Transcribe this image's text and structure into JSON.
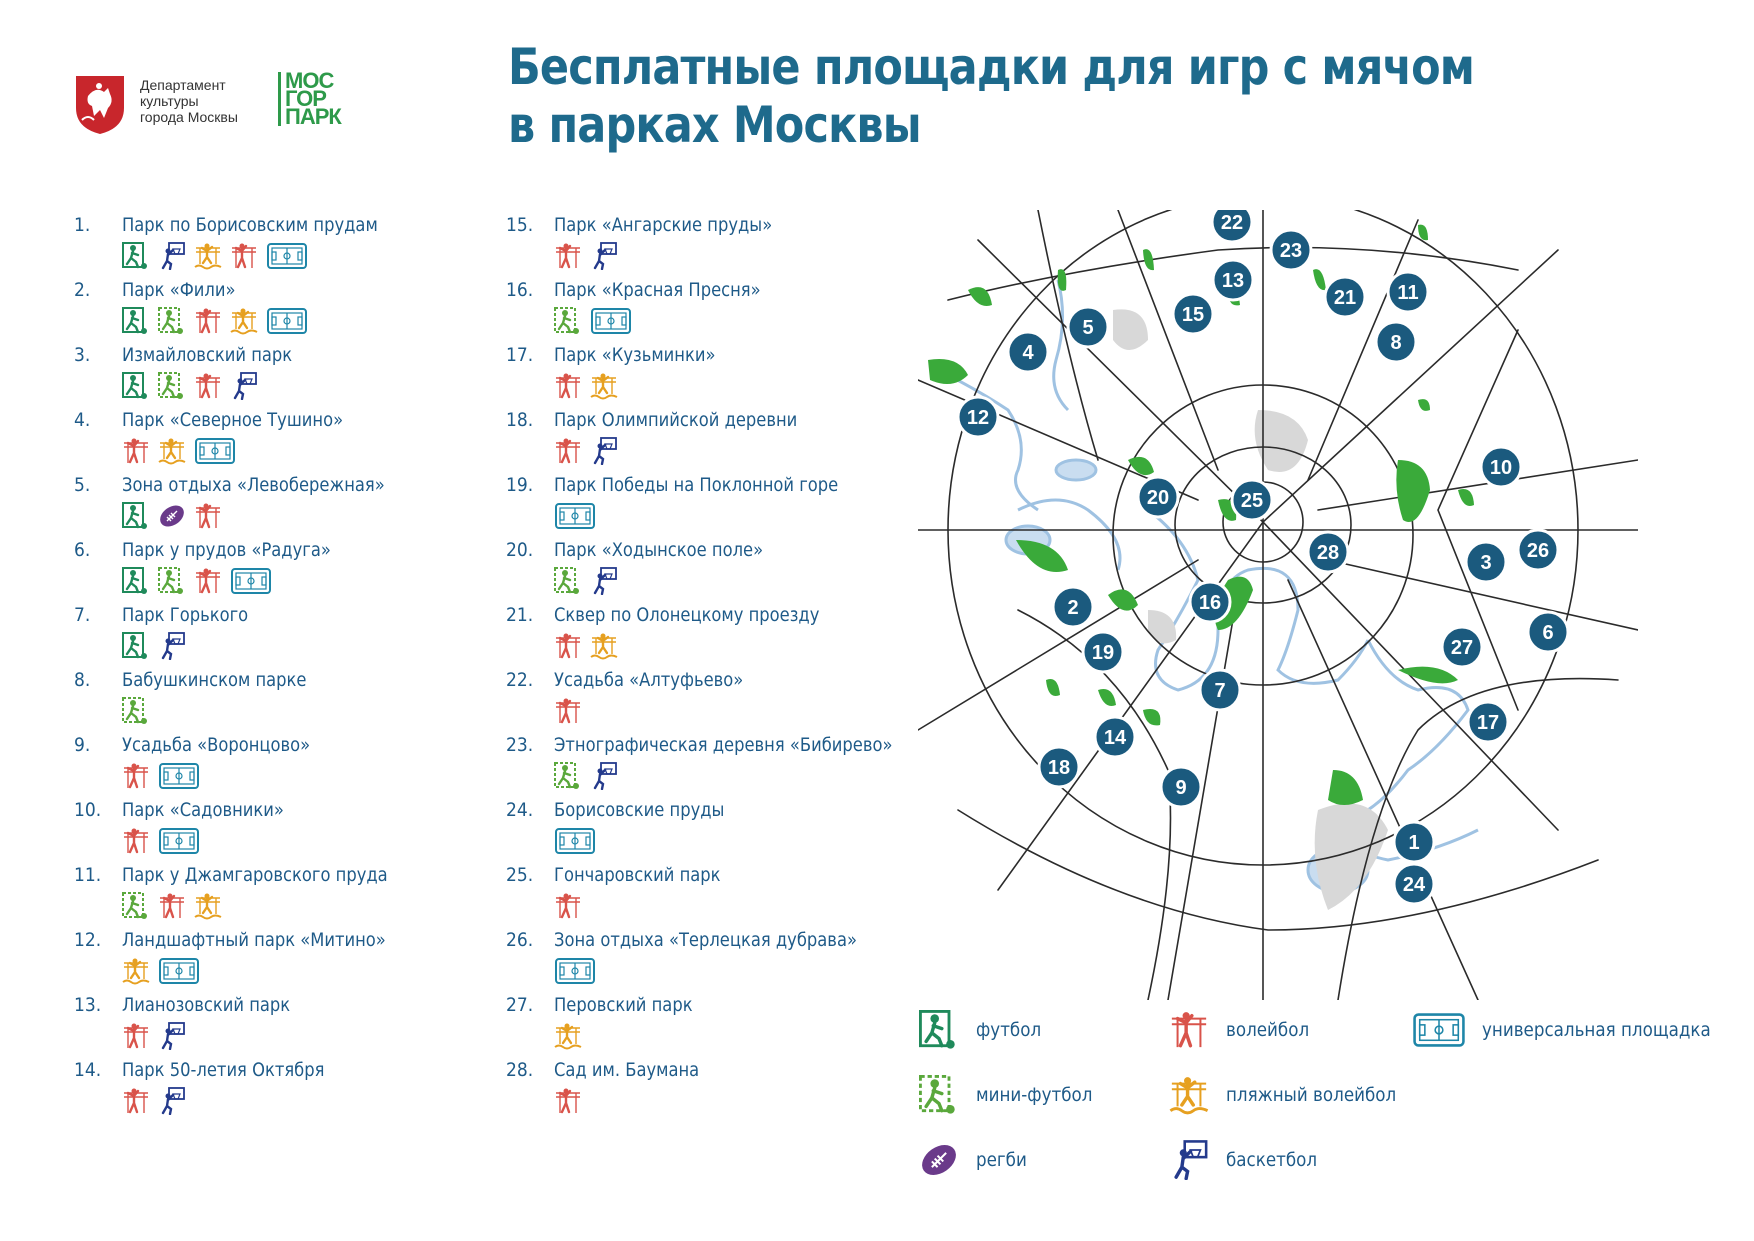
{
  "header": {
    "dept_lines": [
      "Департамент",
      "культуры",
      "города Москвы"
    ],
    "brand_lines": [
      "МОС",
      "ГОР",
      "ПАРК"
    ],
    "title_lines": [
      "Бесплатные площадки для игр с мячом",
      "в парках Москвы"
    ]
  },
  "colors": {
    "football": "#1f8a5b",
    "minifootball": "#5aa83c",
    "volleyball": "#d9534a",
    "beachvolleyball": "#e6a020",
    "basketball": "#243a8c",
    "rugby": "#6a3a8a",
    "universal": "#1e86a8",
    "marker": "#1b5a7e",
    "park": "#3aaa3a",
    "road": "#2b2b2b",
    "water": "#c9ddf0"
  },
  "parks": [
    {
      "num": "1.",
      "name": "Парк по Борисовским прудам",
      "icons": [
        "football",
        "basketball",
        "beachvolleyball",
        "volleyball",
        "universal"
      ]
    },
    {
      "num": "2.",
      "name": "Парк «Фили»",
      "icons": [
        "football",
        "minifootball",
        "volleyball",
        "beachvolleyball",
        "universal"
      ]
    },
    {
      "num": "3.",
      "name": "Измайловский парк",
      "icons": [
        "football",
        "minifootball",
        "volleyball",
        "basketball"
      ]
    },
    {
      "num": "4.",
      "name": "Парк «Северное Тушино»",
      "icons": [
        "volleyball",
        "beachvolleyball",
        "universal"
      ]
    },
    {
      "num": "5.",
      "name": "Зона отдыха «Левобережная»",
      "icons": [
        "football",
        "rugby",
        "volleyball"
      ]
    },
    {
      "num": "6.",
      "name": "Парк у прудов «Радуга»",
      "icons": [
        "football",
        "minifootball",
        "volleyball",
        "universal"
      ]
    },
    {
      "num": "7.",
      "name": "Парк Горького",
      "icons": [
        "football",
        "basketball"
      ]
    },
    {
      "num": "8.",
      "name": "Бабушкинском парке",
      "icons": [
        "minifootball"
      ]
    },
    {
      "num": "9.",
      "name": "Усадьба «Воронцово»",
      "icons": [
        "volleyball",
        "universal"
      ]
    },
    {
      "num": "10.",
      "name": "Парк «Садовники»",
      "icons": [
        "volleyball",
        "universal"
      ]
    },
    {
      "num": "11.",
      "name": "Парк у Джамгаровского пруда",
      "icons": [
        "minifootball",
        "volleyball",
        "beachvolleyball"
      ]
    },
    {
      "num": "12.",
      "name": "Ландшафтный парк «Митино»",
      "icons": [
        "beachvolleyball",
        "universal"
      ]
    },
    {
      "num": "13.",
      "name": "Лианозовский парк",
      "icons": [
        "volleyball",
        "basketball"
      ]
    },
    {
      "num": "14.",
      "name": "Парк 50-летия Октября",
      "icons": [
        "volleyball",
        "basketball"
      ]
    },
    {
      "num": "15.",
      "name": "Парк «Ангарские пруды»",
      "icons": [
        "volleyball",
        "basketball"
      ]
    },
    {
      "num": "16.",
      "name": "Парк «Красная Пресня»",
      "icons": [
        "minifootball",
        "universal"
      ]
    },
    {
      "num": "17.",
      "name": "Парк «Кузьминки»",
      "icons": [
        "volleyball",
        "beachvolleyball"
      ]
    },
    {
      "num": "18.",
      "name": "Парк Олимпийской деревни",
      "icons": [
        "volleyball",
        "basketball"
      ]
    },
    {
      "num": "19.",
      "name": "Парк Победы на Поклонной горе",
      "icons": [
        "universal"
      ]
    },
    {
      "num": "20.",
      "name": "Парк «Ходынское поле»",
      "icons": [
        "minifootball",
        "basketball"
      ]
    },
    {
      "num": "21.",
      "name": "Сквер по Олонецкому проезду",
      "icons": [
        "volleyball",
        "beachvolleyball"
      ]
    },
    {
      "num": "22.",
      "name": "Усадьба «Алтуфьево»",
      "icons": [
        "volleyball"
      ]
    },
    {
      "num": "23.",
      "name": "Этнографическая деревня  «Бибирево»",
      "icons": [
        "minifootball",
        "basketball"
      ]
    },
    {
      "num": "24.",
      "name": "Борисовские пруды",
      "icons": [
        "universal"
      ]
    },
    {
      "num": "25.",
      "name": "Гончаровский парк",
      "icons": [
        "volleyball"
      ]
    },
    {
      "num": "26.",
      "name": "Зона отдыха «Терлецкая дубрава»",
      "icons": [
        "universal"
      ]
    },
    {
      "num": "27.",
      "name": "Перовский парк",
      "icons": [
        "beachvolleyball"
      ]
    },
    {
      "num": "28.",
      "name": "Сад им. Баумана",
      "icons": [
        "volleyball"
      ]
    }
  ],
  "legend": [
    {
      "icon": "football",
      "label": "футбол"
    },
    {
      "icon": "volleyball",
      "label": "волейбол"
    },
    {
      "icon": "universal",
      "label": "универсальная площадка"
    },
    {
      "icon": "minifootball",
      "label": "мини-футбол"
    },
    {
      "icon": "beachvolleyball",
      "label": "пляжный волейбол"
    },
    {
      "icon": "rugby",
      "label": "регби"
    },
    {
      "icon": "basketball",
      "label": "баскетбол"
    }
  ],
  "map_markers": [
    "22",
    "23",
    "13",
    "21",
    "11",
    "5",
    "15",
    "4",
    "8",
    "12",
    "10",
    "25",
    "20",
    "28",
    "3",
    "26",
    "16",
    "2",
    "6",
    "27",
    "19",
    "7",
    "17",
    "14",
    "18",
    "9",
    "1",
    "24"
  ]
}
